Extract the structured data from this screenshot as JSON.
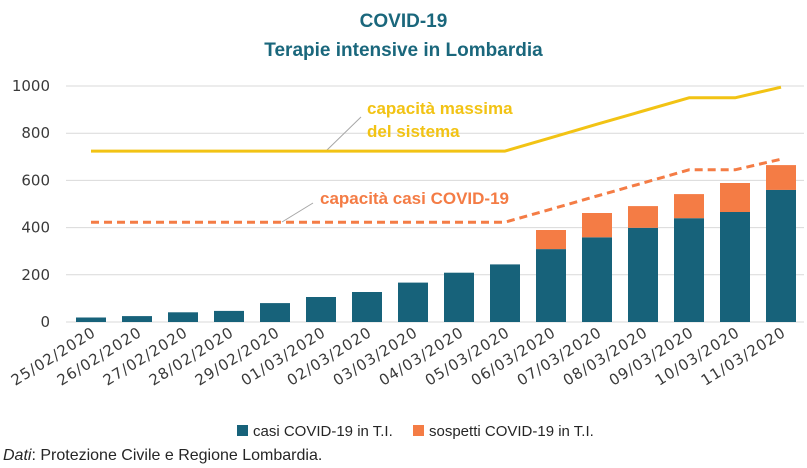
{
  "chart_data": {
    "type": "bar",
    "stacked": true,
    "title": "COVID-19",
    "subtitle": "Terapie intensive in Lombardia",
    "ylim": [
      0,
      1000
    ],
    "yticks": [
      0,
      200,
      400,
      600,
      800,
      1000
    ],
    "grid": true,
    "legend": "bottom",
    "categories": [
      "25/02/2020",
      "26/02/2020",
      "27/02/2020",
      "28/02/2020",
      "29/02/2020",
      "01/03/2020",
      "02/03/2020",
      "03/03/2020",
      "04/03/2020",
      "05/03/2020",
      "06/03/2020",
      "07/03/2020",
      "08/03/2020",
      "09/03/2020",
      "10/03/2020",
      "11/03/2020"
    ],
    "series": [
      {
        "name": "casi COVID-19 in T.I.",
        "color": "#17627a",
        "values": [
          19,
          25,
          41,
          47,
          80,
          106,
          127,
          167,
          209,
          244,
          309,
          359,
          399,
          440,
          466,
          560
        ]
      },
      {
        "name": "sospetti COVID-19 in T.I.",
        "color": "#f47c45",
        "values": [
          0,
          0,
          0,
          0,
          0,
          0,
          0,
          0,
          0,
          0,
          81,
          103,
          92,
          102,
          123,
          105
        ]
      }
    ],
    "lines": [
      {
        "label_lines": [
          "capacità massima",
          "del sistema"
        ],
        "color": "#f2c314",
        "dashed": false,
        "values": [
          724,
          724,
          724,
          724,
          724,
          724,
          724,
          724,
          724,
          724,
          781,
          838,
          894,
          950,
          950,
          995
        ]
      },
      {
        "label_lines": [
          "capacità casi COVID-19"
        ],
        "color": "#f47c45",
        "dashed": true,
        "values": [
          423,
          423,
          423,
          423,
          423,
          423,
          423,
          423,
          423,
          423,
          478,
          534,
          589,
          645,
          645,
          690
        ]
      }
    ],
    "source": {
      "label": "Dati",
      "text": ": Protezione Civile e Regione Lombardia."
    }
  }
}
